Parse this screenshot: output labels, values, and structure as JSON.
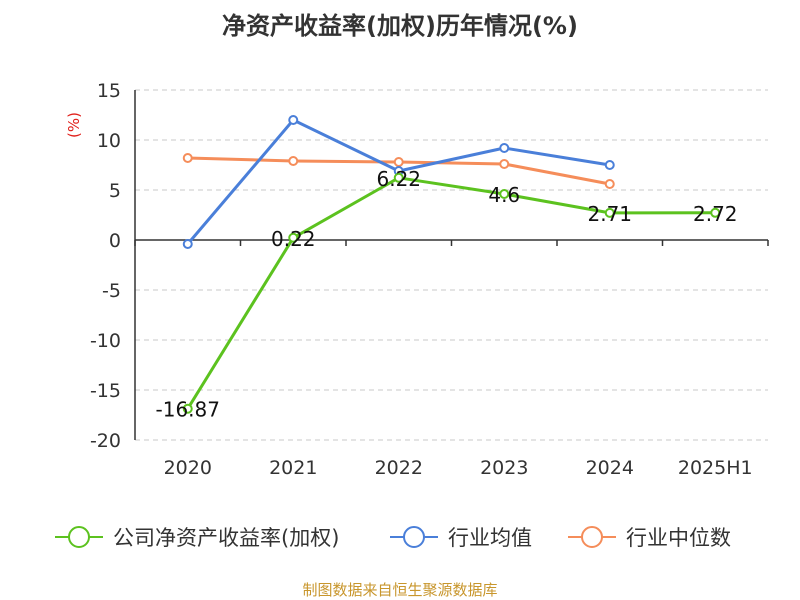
{
  "chart_data": {
    "type": "line",
    "title": "净资产收益率(加权)历年情况(%)",
    "ylabel": "(%)",
    "xlabel": "",
    "categories": [
      "2020",
      "2021",
      "2022",
      "2023",
      "2024",
      "2025H1"
    ],
    "ylim": [
      -20,
      15
    ],
    "yticks": [
      15,
      10,
      5,
      0,
      -5,
      -10,
      -15,
      -20
    ],
    "grid": true,
    "legend_position": "bottom",
    "series": [
      {
        "name": "公司净资产收益率(加权)",
        "color": "#5cc21f",
        "values": [
          -16.87,
          0.22,
          6.22,
          4.6,
          2.71,
          2.72
        ],
        "labels": [
          "-16.87",
          "0.22",
          "6.22",
          "4.6",
          "2.71",
          "2.72"
        ]
      },
      {
        "name": "行业均值",
        "color": "#4a7fd9",
        "values": [
          -0.4,
          12.0,
          6.9,
          9.2,
          7.5,
          null
        ]
      },
      {
        "name": "行业中位数",
        "color": "#f58d5a",
        "values": [
          8.2,
          7.9,
          7.8,
          7.6,
          5.6,
          null
        ]
      }
    ]
  },
  "source_text": "制图数据来自恒生聚源数据库"
}
